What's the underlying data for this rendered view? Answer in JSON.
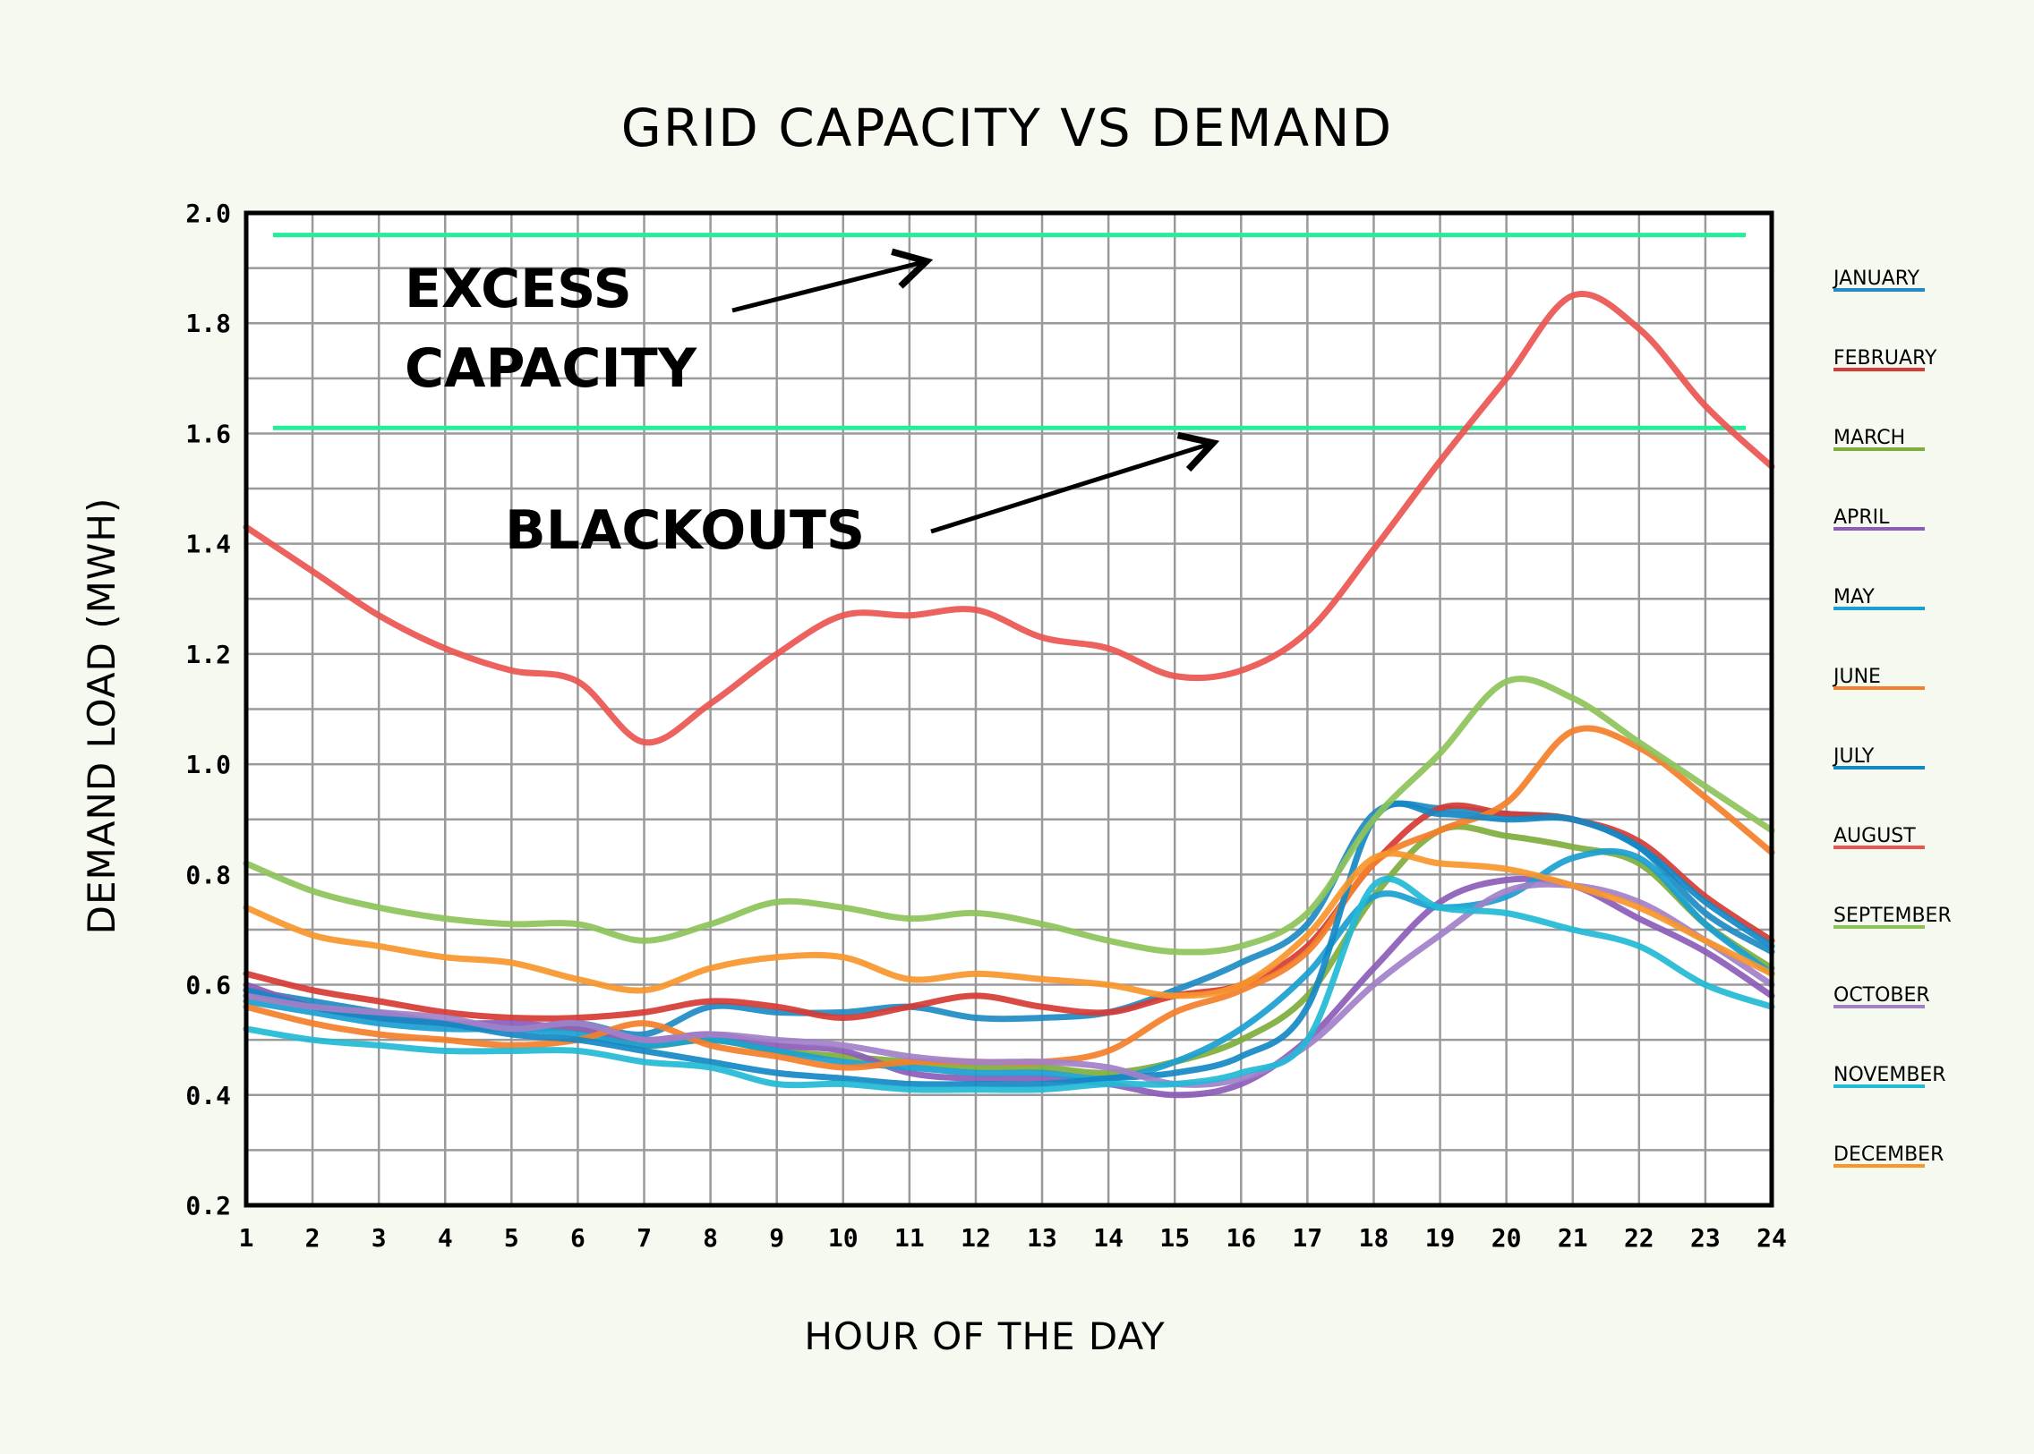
{
  "chart_data": {
    "type": "line",
    "title": "GRID CAPACITY VS DEMAND",
    "xlabel": "HOUR OF THE DAY",
    "ylabel": "DEMAND LOAD (MWH)",
    "x": [
      1,
      2,
      3,
      4,
      5,
      6,
      7,
      8,
      9,
      10,
      11,
      12,
      13,
      14,
      15,
      16,
      17,
      18,
      19,
      20,
      21,
      22,
      23,
      24
    ],
    "xlim": [
      1,
      24
    ],
    "ylim": [
      0.2,
      2.0
    ],
    "yticks": [
      "0.2",
      "0.4",
      "0.6",
      "0.8",
      "1.0",
      "1.2",
      "1.4",
      "1.6",
      "1.8",
      "2.0"
    ],
    "xticks": [
      "1",
      "2",
      "3",
      "4",
      "5",
      "6",
      "7",
      "8",
      "9",
      "10",
      "11",
      "12",
      "13",
      "14",
      "15",
      "16",
      "17",
      "18",
      "19",
      "20",
      "21",
      "22",
      "23",
      "24"
    ],
    "grid": true,
    "legend_position": "right",
    "reference_lines": [
      {
        "y": 1.96,
        "color": "#25ee9a"
      },
      {
        "y": 1.61,
        "color": "#25ee9a"
      }
    ],
    "annotations": [
      {
        "text_lines": [
          "EXCESS",
          "CAPACITY"
        ]
      },
      {
        "text_lines": [
          "BLACKOUTS"
        ]
      }
    ],
    "series": [
      {
        "name": "JANUARY",
        "color": "#1e8bc3",
        "values": [
          0.59,
          0.57,
          0.55,
          0.53,
          0.52,
          0.53,
          0.51,
          0.56,
          0.55,
          0.55,
          0.56,
          0.54,
          0.54,
          0.55,
          0.59,
          0.64,
          0.71,
          0.91,
          0.92,
          0.91,
          0.9,
          0.85,
          0.73,
          0.66
        ]
      },
      {
        "name": "FEBRUARY",
        "color": "#d63b35",
        "values": [
          0.62,
          0.59,
          0.57,
          0.55,
          0.54,
          0.54,
          0.55,
          0.57,
          0.56,
          0.54,
          0.56,
          0.58,
          0.56,
          0.55,
          0.58,
          0.6,
          0.67,
          0.82,
          0.92,
          0.91,
          0.9,
          0.86,
          0.76,
          0.68
        ]
      },
      {
        "name": "MARCH",
        "color": "#7fad3c",
        "values": [
          0.58,
          0.56,
          0.54,
          0.53,
          0.52,
          0.52,
          0.49,
          0.5,
          0.48,
          0.47,
          0.46,
          0.45,
          0.45,
          0.44,
          0.46,
          0.5,
          0.58,
          0.76,
          0.88,
          0.87,
          0.85,
          0.82,
          0.71,
          0.63
        ]
      },
      {
        "name": "APRIL",
        "color": "#8c5db8",
        "values": [
          0.6,
          0.56,
          0.54,
          0.53,
          0.53,
          0.52,
          0.5,
          0.51,
          0.49,
          0.48,
          0.44,
          0.43,
          0.43,
          0.42,
          0.4,
          0.42,
          0.5,
          0.63,
          0.75,
          0.79,
          0.78,
          0.72,
          0.66,
          0.58
        ]
      },
      {
        "name": "MAY",
        "color": "#1a9fd1",
        "values": [
          0.57,
          0.55,
          0.53,
          0.52,
          0.52,
          0.51,
          0.49,
          0.5,
          0.48,
          0.46,
          0.45,
          0.44,
          0.44,
          0.43,
          0.46,
          0.52,
          0.62,
          0.76,
          0.74,
          0.76,
          0.83,
          0.83,
          0.71,
          0.62
        ]
      },
      {
        "name": "JUNE",
        "color": "#f47f2a",
        "values": [
          0.56,
          0.53,
          0.51,
          0.5,
          0.49,
          0.5,
          0.53,
          0.49,
          0.47,
          0.45,
          0.46,
          0.46,
          0.46,
          0.48,
          0.55,
          0.59,
          0.66,
          0.82,
          0.88,
          0.93,
          1.06,
          1.03,
          0.94,
          0.84
        ]
      },
      {
        "name": "JULY",
        "color": "#1588c4",
        "values": [
          0.59,
          0.56,
          0.54,
          0.53,
          0.51,
          0.5,
          0.48,
          0.46,
          0.44,
          0.43,
          0.42,
          0.42,
          0.42,
          0.43,
          0.44,
          0.47,
          0.56,
          0.9,
          0.91,
          0.9,
          0.9,
          0.85,
          0.75,
          0.67
        ]
      },
      {
        "name": "AUGUST",
        "color": "#ea5550",
        "values": [
          1.43,
          1.35,
          1.27,
          1.21,
          1.17,
          1.15,
          1.04,
          1.11,
          1.2,
          1.27,
          1.27,
          1.28,
          1.23,
          1.21,
          1.16,
          1.17,
          1.24,
          1.39,
          1.55,
          1.7,
          1.85,
          1.79,
          1.65,
          1.54
        ]
      },
      {
        "name": "SEPTEMBER",
        "color": "#8ec35a",
        "values": [
          0.82,
          0.77,
          0.74,
          0.72,
          0.71,
          0.71,
          0.68,
          0.71,
          0.75,
          0.74,
          0.72,
          0.73,
          0.71,
          0.68,
          0.66,
          0.67,
          0.73,
          0.9,
          1.02,
          1.15,
          1.12,
          1.04,
          0.96,
          0.88
        ]
      },
      {
        "name": "OCTOBER",
        "color": "#a180c9",
        "values": [
          0.58,
          0.56,
          0.55,
          0.54,
          0.52,
          0.53,
          0.5,
          0.51,
          0.5,
          0.49,
          0.47,
          0.46,
          0.46,
          0.45,
          0.42,
          0.43,
          0.49,
          0.6,
          0.69,
          0.77,
          0.78,
          0.75,
          0.68,
          0.6
        ]
      },
      {
        "name": "NOVEMBER",
        "color": "#23bad6",
        "values": [
          0.52,
          0.5,
          0.49,
          0.48,
          0.48,
          0.48,
          0.46,
          0.45,
          0.42,
          0.42,
          0.41,
          0.41,
          0.41,
          0.42,
          0.42,
          0.44,
          0.5,
          0.78,
          0.74,
          0.73,
          0.7,
          0.67,
          0.6,
          0.56
        ]
      },
      {
        "name": "DECEMBER",
        "color": "#f7962d",
        "values": [
          0.74,
          0.69,
          0.67,
          0.65,
          0.64,
          0.61,
          0.59,
          0.63,
          0.65,
          0.65,
          0.61,
          0.62,
          0.61,
          0.6,
          0.58,
          0.6,
          0.69,
          0.83,
          0.82,
          0.81,
          0.78,
          0.74,
          0.68,
          0.62
        ]
      }
    ]
  }
}
